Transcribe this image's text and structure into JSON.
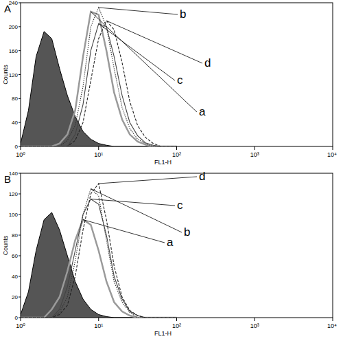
{
  "chart_data": [
    {
      "type": "line",
      "title": "A",
      "x_label": "FL1-H",
      "y_label": "Counts",
      "log": "x",
      "x": [
        1,
        1.26,
        1.58,
        2,
        2.51,
        3.16,
        3.98,
        5.01,
        6.31,
        7.94,
        10,
        12.6,
        15.8,
        20,
        25.1,
        31.6,
        39.8,
        50.1,
        63.1,
        79.4,
        100
      ],
      "xlim": [
        1,
        10000
      ],
      "xticks": [
        {
          "value": 1,
          "label": "10⁰"
        },
        {
          "value": 10,
          "label": "10¹"
        },
        {
          "value": 100,
          "label": "10²"
        },
        {
          "value": 1000,
          "label": "10³"
        },
        {
          "value": 10000,
          "label": "10⁴"
        }
      ],
      "ylim": [
        0,
        240
      ],
      "yticks": [
        0,
        40,
        80,
        120,
        160,
        200,
        240
      ],
      "series": [
        {
          "type": "area",
          "color": "#555555",
          "values": [
            5,
            60,
            150,
            192,
            180,
            130,
            85,
            50,
            25,
            12,
            5,
            2,
            0,
            0,
            0,
            0,
            0,
            0,
            0,
            0,
            0
          ]
        },
        {
          "name": "a",
          "color": "#9a9a9a",
          "line_style": "solid",
          "values": [
            0,
            0,
            0,
            0,
            0,
            5,
            20,
            60,
            150,
            225,
            220,
            160,
            90,
            45,
            20,
            8,
            3,
            0,
            0,
            0,
            0
          ]
        },
        {
          "name": "b",
          "color": "#333333",
          "line_style": "dotted",
          "values": [
            0,
            0,
            0,
            0,
            0,
            0,
            10,
            35,
            100,
            200,
            232,
            200,
            130,
            65,
            30,
            12,
            5,
            0,
            0,
            0,
            0
          ]
        },
        {
          "name": "c",
          "color": "#444444",
          "line_style": "solid",
          "values": [
            0,
            0,
            0,
            0,
            0,
            0,
            0,
            20,
            70,
            160,
            205,
            200,
            150,
            85,
            40,
            18,
            6,
            2,
            0,
            0,
            0
          ]
        },
        {
          "name": "d",
          "color": "#222222",
          "line_style": "dashed",
          "values": [
            0,
            0,
            0,
            0,
            0,
            0,
            0,
            10,
            40,
            110,
            180,
            210,
            195,
            140,
            75,
            35,
            15,
            5,
            0,
            0,
            0
          ]
        }
      ]
    },
    {
      "type": "line",
      "title": "B",
      "x_label": "FL1-H",
      "y_label": "Counts",
      "log": "x",
      "x": [
        1,
        1.26,
        1.58,
        2,
        2.51,
        3.16,
        3.98,
        5.01,
        6.31,
        7.94,
        10,
        12.6,
        15.8,
        20,
        25.1,
        31.6,
        39.8,
        50.1,
        63.1,
        79.4,
        100
      ],
      "xlim": [
        1,
        10000
      ],
      "xticks": [
        {
          "value": 1,
          "label": "10⁰"
        },
        {
          "value": 10,
          "label": "10¹"
        },
        {
          "value": 100,
          "label": "10²"
        },
        {
          "value": 1000,
          "label": "10³"
        },
        {
          "value": 10000,
          "label": "10⁴"
        }
      ],
      "ylim": [
        0,
        140
      ],
      "yticks": [
        0,
        20,
        40,
        60,
        80,
        100,
        120,
        140
      ],
      "series": [
        {
          "type": "area",
          "color": "#555555",
          "values": [
            3,
            25,
            65,
            95,
            102,
            85,
            60,
            35,
            18,
            8,
            3,
            1,
            0,
            0,
            0,
            0,
            0,
            0,
            0,
            0,
            0
          ]
        },
        {
          "name": "a",
          "color": "#9a9a9a",
          "line_style": "solid",
          "values": [
            0,
            0,
            0,
            0,
            8,
            20,
            45,
            75,
            95,
            90,
            65,
            35,
            15,
            6,
            2,
            0,
            0,
            0,
            0,
            0,
            0
          ]
        },
        {
          "name": "b",
          "color": "#333333",
          "line_style": "dotted",
          "values": [
            0,
            0,
            0,
            0,
            0,
            5,
            20,
            55,
            100,
            125,
            118,
            75,
            35,
            15,
            5,
            0,
            0,
            0,
            0,
            0,
            0
          ]
        },
        {
          "name": "c",
          "color": "#444444",
          "line_style": "solid",
          "values": [
            0,
            0,
            0,
            0,
            0,
            8,
            30,
            65,
            100,
            115,
            110,
            80,
            40,
            18,
            6,
            2,
            0,
            0,
            0,
            0,
            0
          ]
        },
        {
          "name": "d",
          "color": "#222222",
          "line_style": "dashed",
          "values": [
            0,
            0,
            0,
            0,
            0,
            3,
            12,
            40,
            85,
            120,
            130,
            95,
            50,
            20,
            7,
            2,
            0,
            0,
            0,
            0,
            0
          ]
        }
      ]
    }
  ]
}
